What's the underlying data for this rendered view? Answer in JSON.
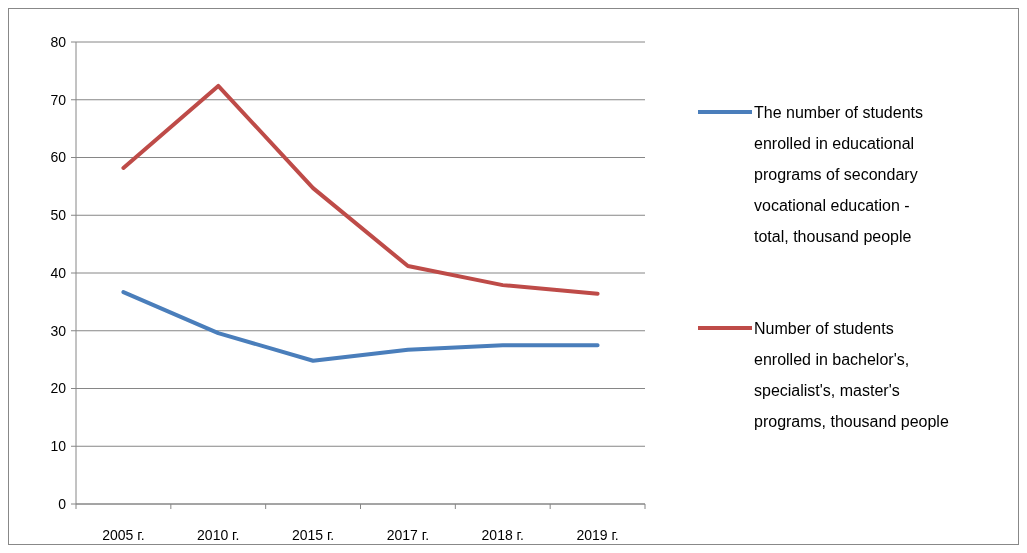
{
  "chart_data": {
    "type": "line",
    "categories": [
      "2005 г.",
      "2010 г.",
      "2015 г.",
      "2017 г.",
      "2018 г.",
      "2019 г."
    ],
    "series": [
      {
        "name": "The number of students enrolled in educational programs of secondary vocational education - total, thousand people",
        "color": "#4a7ebb",
        "values": [
          36.7,
          29.6,
          24.8,
          26.7,
          27.5,
          27.5
        ]
      },
      {
        "name": "Number of students enrolled in bachelor's, specialist's, master's programs, thousand people",
        "color": "#be4b48",
        "values": [
          58.2,
          72.4,
          54.7,
          41.2,
          37.9,
          36.4
        ]
      }
    ],
    "ylim": [
      0,
      80
    ],
    "yticks": [
      0,
      10,
      20,
      30,
      40,
      50,
      60,
      70,
      80
    ],
    "grid": "y",
    "legend": "right",
    "marker": "none",
    "line_style": "solid"
  }
}
